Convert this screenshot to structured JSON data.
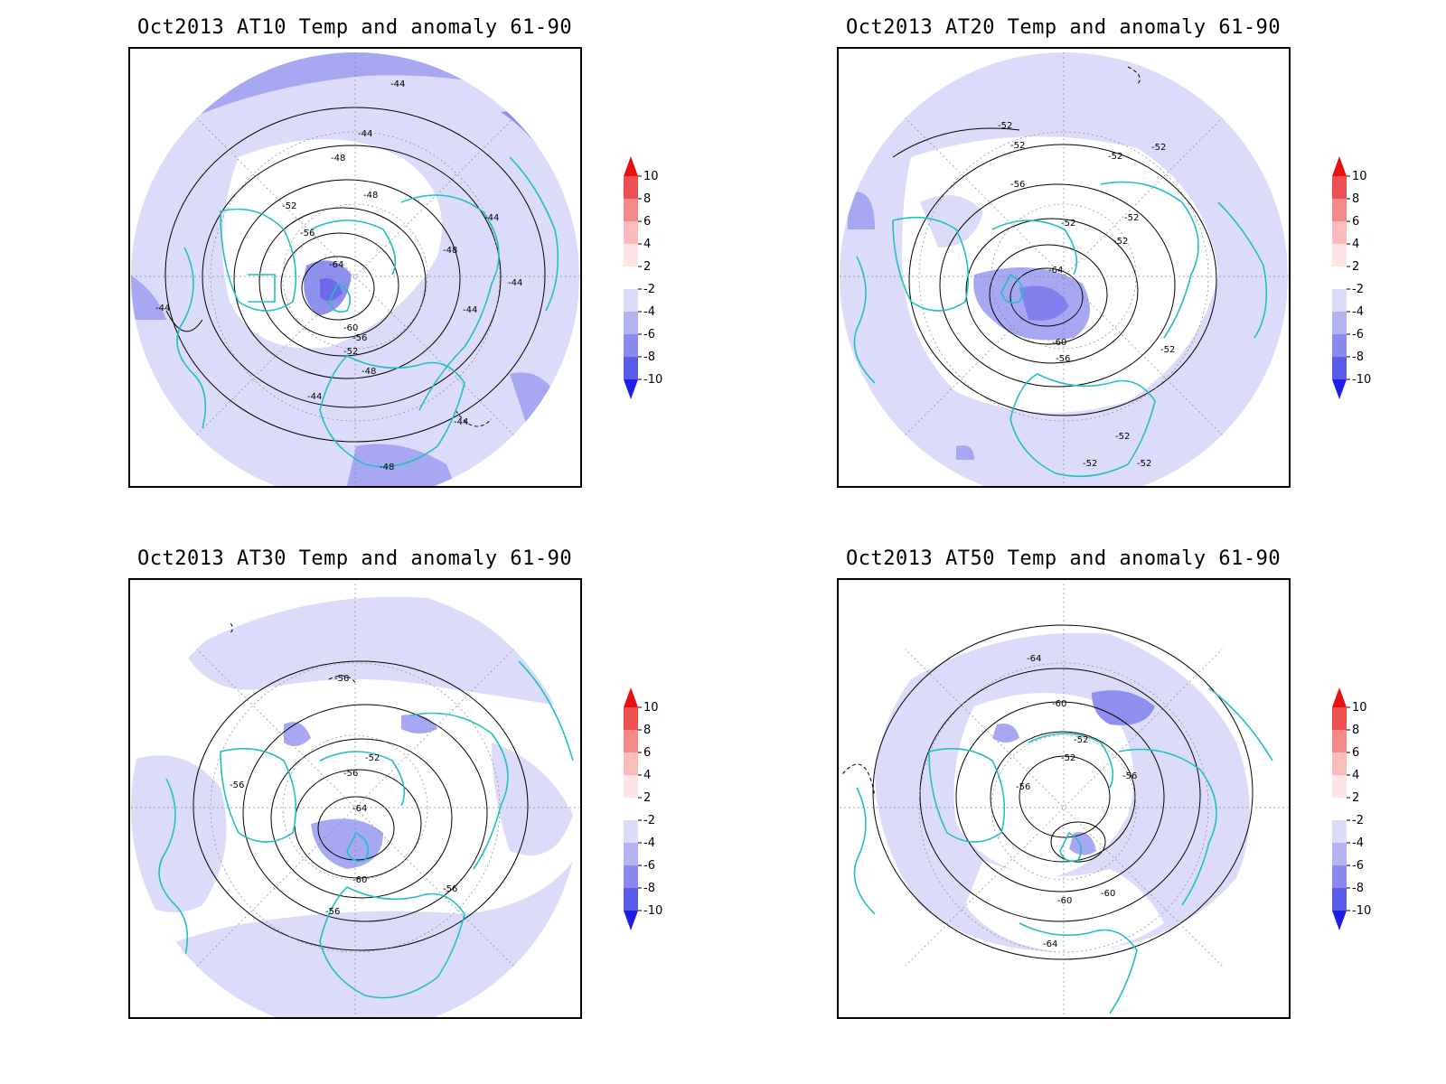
{
  "panels": [
    {
      "title": "Oct2013 AT10 Temp and anomaly 61-90",
      "contour_labels": [
        "-44",
        "-44",
        "-48",
        "-48",
        "-52",
        "-56",
        "-64",
        "-60",
        "-56",
        "-52",
        "-48",
        "-44",
        "-44",
        "-44",
        "-48",
        "-44",
        "-44",
        "-44",
        "-48"
      ]
    },
    {
      "title": "Oct2013 AT20 Temp and anomaly 61-90",
      "contour_labels": [
        "-52",
        "-52",
        "-52",
        "-52",
        "-56",
        "-52",
        "-52",
        "-52",
        "-64",
        "-60",
        "-56",
        "-52",
        "-52",
        "-52",
        "-52"
      ]
    },
    {
      "title": "Oct2013 AT30 Temp and anomaly 61-90",
      "contour_labels": [
        "-56",
        "-52",
        "-56",
        "-56",
        "-64",
        "-60",
        "-56",
        "-56"
      ]
    },
    {
      "title": "Oct2013 AT50 Temp and anomaly 61-90",
      "contour_labels": [
        "-64",
        "-60",
        "-52",
        "-52",
        "-56",
        "-56",
        "-60",
        "-60",
        "-64"
      ]
    }
  ],
  "colorbar": {
    "ticks": [
      "10",
      "8",
      "6",
      "4",
      "2",
      "-2",
      "-4",
      "-6",
      "-8",
      "-10"
    ],
    "colors": [
      "#e81010",
      "#ee5050",
      "#f58a8a",
      "#fbbcbc",
      "#fde4e4",
      "#ffffff",
      "#dcdcfa",
      "#b4b4f4",
      "#8a8aee",
      "#5a5ae8",
      "#1e1ee6"
    ]
  },
  "style": {
    "coast_color": "#20c0c0",
    "contour_color": "#000000",
    "anomaly_light": "#dcdcfa",
    "anomaly_mid": "#a8a8f2",
    "anomaly_dark": "#8080ec"
  }
}
